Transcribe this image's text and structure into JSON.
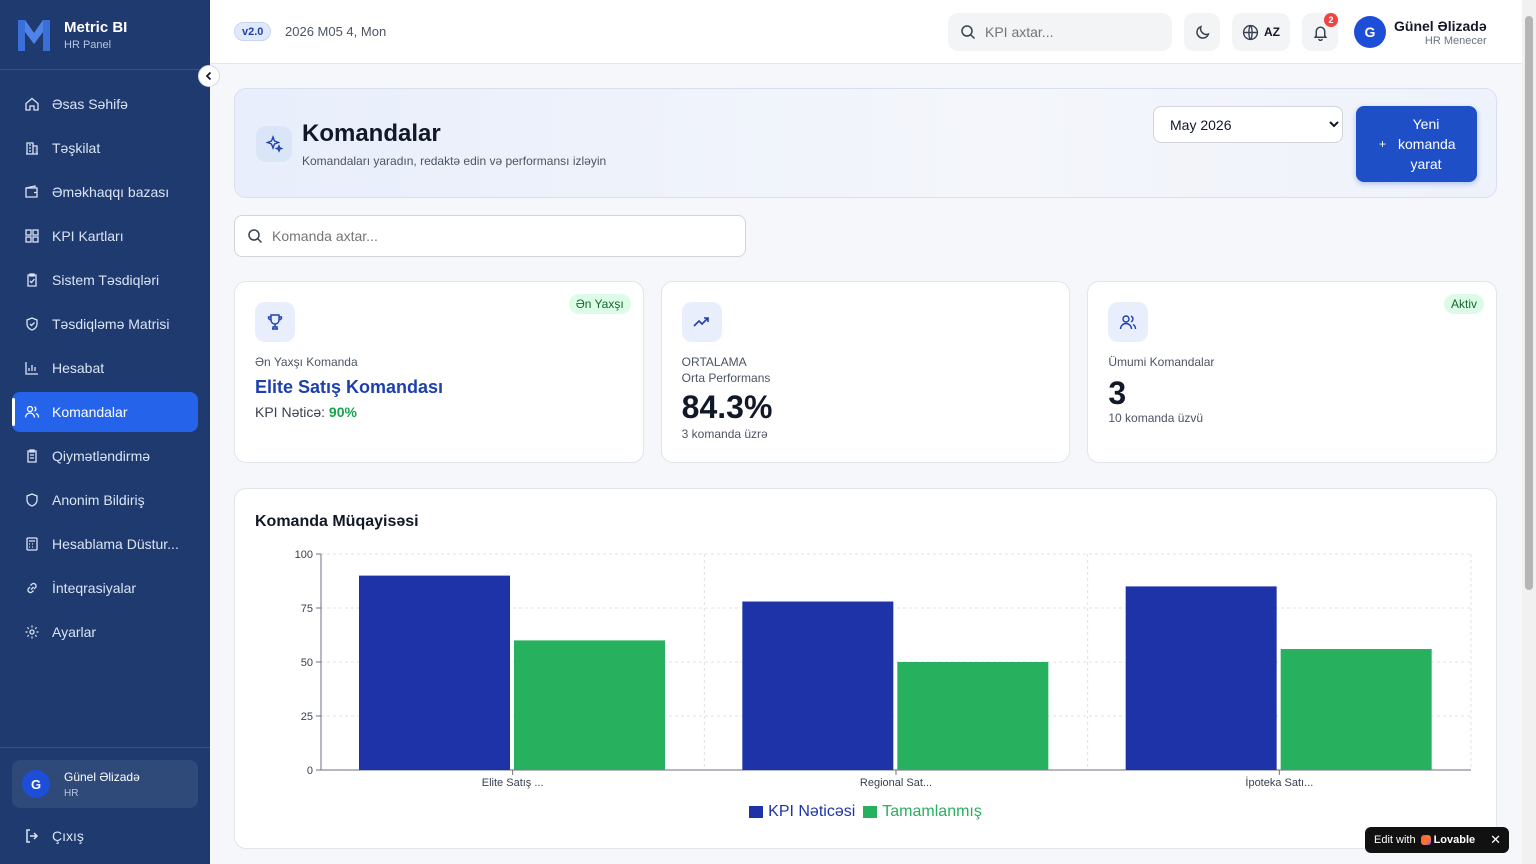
{
  "app": {
    "name": "Metric BI",
    "subtitle": "HR Panel"
  },
  "sidebar": {
    "items": [
      {
        "label": "Əsas Səhifə",
        "icon": "home-icon"
      },
      {
        "label": "Təşkilat",
        "icon": "building-icon"
      },
      {
        "label": "Əməkhaqqı bazası",
        "icon": "wallet-icon"
      },
      {
        "label": "KPI Kartları",
        "icon": "grid-icon"
      },
      {
        "label": "Sistem Təsdiqləri",
        "icon": "clipboard-check-icon"
      },
      {
        "label": "Təsdiqləmə Matrisi",
        "icon": "shield-check-icon"
      },
      {
        "label": "Hesabat",
        "icon": "bar-chart-icon"
      },
      {
        "label": "Komandalar",
        "icon": "users-icon",
        "active": true
      },
      {
        "label": "Qiymətləndirmə",
        "icon": "clipboard-icon"
      },
      {
        "label": "Anonim Bildiriş",
        "icon": "shield-icon"
      },
      {
        "label": "Hesablama Düstur...",
        "icon": "calculator-icon"
      },
      {
        "label": "İnteqrasiyalar",
        "icon": "link-icon"
      },
      {
        "label": "Ayarlar",
        "icon": "gear-icon"
      }
    ],
    "user": {
      "initial": "G",
      "name": "Günel Əlizadə",
      "role": "HR"
    },
    "logout_label": "Çıxış"
  },
  "topbar": {
    "version": "v2.0",
    "date": "2026 M05 4, Mon",
    "search_placeholder": "KPI axtar...",
    "language": "AZ",
    "notification_count": "2",
    "user": {
      "initial": "G",
      "name": "Günel Əlizadə",
      "role": "HR Menecer"
    }
  },
  "page": {
    "title": "Komandalar",
    "subtitle": "Komandaları yaradın, redaktə edin və performansı izləyin",
    "month_selected": "May 2026",
    "new_button_plus": "+",
    "new_button_label": "Yeni komanda yarat",
    "team_search_placeholder": "Komanda axtar..."
  },
  "cards": {
    "best": {
      "badge": "Ən Yaxşı",
      "label": "Ən Yaxşı Komanda",
      "team": "Elite Satış Komandası",
      "kpi_label": "KPI Nəticə:",
      "kpi_value": "90%"
    },
    "average": {
      "label_top": "ORTALAMA",
      "label": "Orta Performans",
      "value": "84.3%",
      "footer": "3 komanda üzrə"
    },
    "total": {
      "badge": "Aktiv",
      "label": "Ümumi Komandalar",
      "value": "3",
      "footer": "10 komanda üzvü"
    }
  },
  "colors": {
    "sidebar_bg": "#1e3a6e",
    "accent": "#2563eb",
    "kpi_series": "#1e33a8",
    "done_series": "#27b05e"
  },
  "chart_data": {
    "type": "bar",
    "title": "Komanda Müqayisəsi",
    "categories": [
      "Elite Satış ...",
      "Regional Sat...",
      "İpoteka Satı..."
    ],
    "series": [
      {
        "name": "KPI Nəticəsi",
        "values": [
          90,
          78,
          85
        ]
      },
      {
        "name": "Tamamlanmış",
        "values": [
          60,
          50,
          56
        ]
      }
    ],
    "ylim": [
      0,
      100
    ],
    "yticks": [
      0,
      25,
      50,
      75,
      100
    ],
    "grid": true,
    "legend": "bottom"
  }
}
